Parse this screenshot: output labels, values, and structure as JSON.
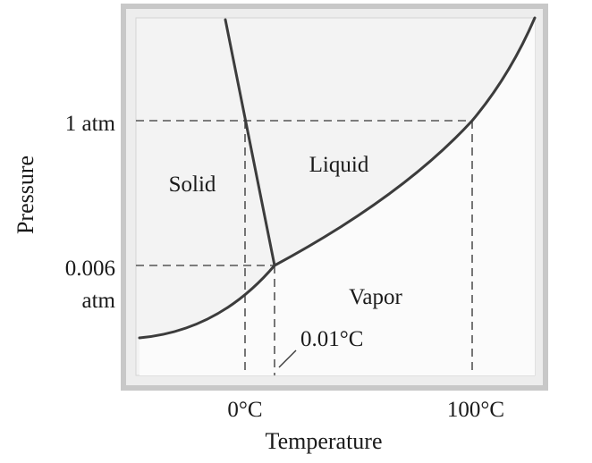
{
  "labels": {
    "y_axis": "Pressure",
    "x_axis": "Temperature",
    "p_1atm": "1 atm",
    "p_0006_line1": "0.006",
    "p_0006_line2": "atm",
    "t_0c": "0°C",
    "t_100c": "100°C",
    "triple_point": "0.01°C"
  },
  "regions": {
    "solid": "Solid",
    "liquid": "Liquid",
    "vapor": "Vapor"
  },
  "colors": {
    "frame_border": "#c8c8c8",
    "plot_background": "#f3f3f3",
    "vapor_fill": "#fbfbfb",
    "curve": "#3c3c3c",
    "dashed": "#555555"
  }
}
